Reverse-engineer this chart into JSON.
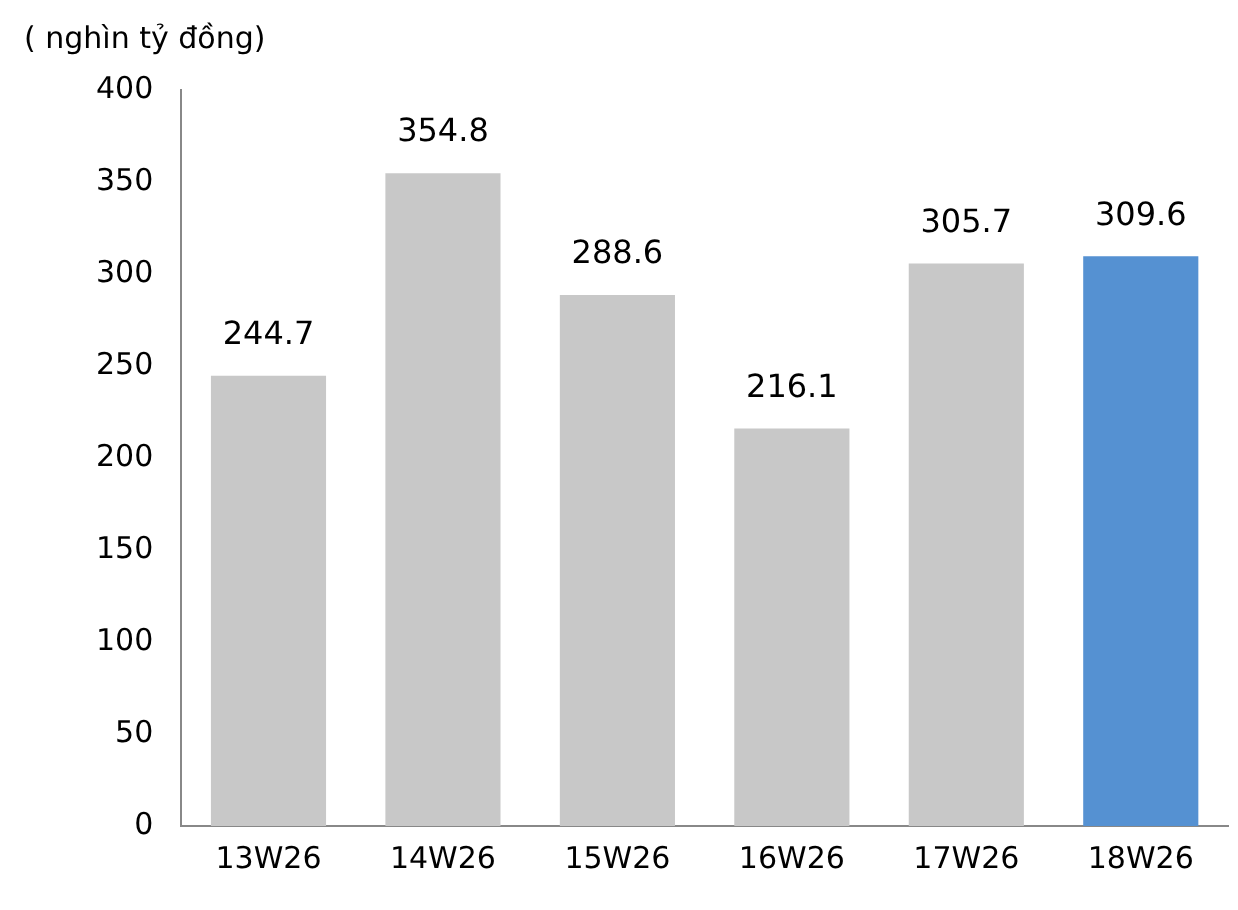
{
  "chart_data": {
    "type": "bar",
    "ylabel": "( nghìn tỷ đồng)",
    "categories": [
      "13W26",
      "14W26",
      "15W26",
      "16W26",
      "17W26",
      "18W26"
    ],
    "values": [
      244.7,
      354.8,
      288.6,
      216.1,
      305.7,
      309.6
    ],
    "colors": [
      "#c8c8c8",
      "#c8c8c8",
      "#c8c8c8",
      "#c8c8c8",
      "#c8c8c8",
      "#5591d2"
    ],
    "ylim": [
      0,
      400
    ],
    "yticks": [
      0,
      50,
      100,
      150,
      200,
      250,
      300,
      350,
      400
    ],
    "grid": false,
    "legend": false,
    "data_labels": true
  }
}
